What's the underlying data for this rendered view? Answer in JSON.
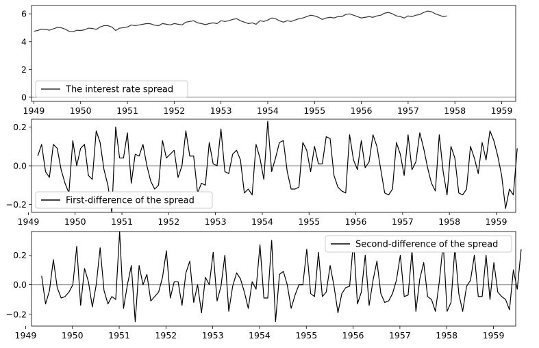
{
  "chart_data": [
    {
      "type": "line",
      "title": "",
      "xlabel": "",
      "ylabel": "",
      "xlim": [
        1948.95,
        1959.3
      ],
      "ylim": [
        -0.3,
        6.6
      ],
      "x_ticks": [
        1949,
        1950,
        1951,
        1952,
        1953,
        1954,
        1955,
        1956,
        1957,
        1958,
        1959
      ],
      "y_ticks": [
        0,
        2,
        4,
        6
      ],
      "legend": "lower-left",
      "zero_line": true,
      "series": [
        {
          "name": "The interest rate spread",
          "color": "#333333",
          "x_start": 1949.0,
          "x_step": 0.08333,
          "values": [
            4.75,
            4.8,
            4.9,
            4.88,
            4.82,
            4.92,
            5.02,
            5.0,
            4.9,
            4.75,
            4.7,
            4.82,
            4.8,
            4.85,
            4.97,
            4.95,
            4.88,
            5.05,
            5.15,
            5.15,
            5.05,
            4.8,
            4.97,
            5.0,
            5.05,
            5.2,
            5.15,
            5.2,
            5.25,
            5.3,
            5.28,
            5.18,
            5.15,
            5.3,
            5.25,
            5.2,
            5.3,
            5.25,
            5.2,
            5.4,
            5.45,
            5.5,
            5.35,
            5.3,
            5.22,
            5.3,
            5.35,
            5.3,
            5.5,
            5.45,
            5.5,
            5.6,
            5.65,
            5.5,
            5.4,
            5.3,
            5.35,
            5.25,
            5.5,
            5.45,
            5.55,
            5.7,
            5.65,
            5.5,
            5.4,
            5.5,
            5.45,
            5.55,
            5.65,
            5.7,
            5.8,
            5.9,
            5.85,
            5.75,
            5.6,
            5.7,
            5.75,
            5.7,
            5.8,
            5.8,
            5.95,
            6.0,
            5.9,
            5.8,
            5.7,
            5.75,
            5.8,
            5.75,
            5.85,
            5.9,
            6.05,
            6.1,
            6.0,
            5.85,
            5.8,
            5.7,
            5.85,
            5.8,
            5.9,
            5.95,
            6.1,
            6.2,
            6.15,
            6.0,
            5.9,
            5.8,
            5.85
          ]
        }
      ]
    },
    {
      "type": "line",
      "title": "",
      "xlabel": "",
      "ylabel": "",
      "xlim": [
        1948.95,
        1959.3
      ],
      "ylim": [
        -0.24,
        0.24
      ],
      "x_ticks": [
        1949,
        1950,
        1951,
        1952,
        1953,
        1954,
        1955,
        1956,
        1957,
        1958,
        1959
      ],
      "y_ticks": [
        -0.2,
        0.0,
        0.2
      ],
      "legend": "lower-left",
      "zero_line": true,
      "series": [
        {
          "name": "First-difference of the spread",
          "color": "#000000",
          "x_start": 1949.083,
          "x_step": 0.08333,
          "values": [
            0.05,
            0.11,
            -0.03,
            -0.06,
            0.11,
            0.09,
            -0.02,
            -0.09,
            -0.14,
            0.13,
            0.0,
            0.09,
            0.11,
            -0.05,
            -0.07,
            0.18,
            0.12,
            -0.02,
            -0.1,
            -0.24,
            0.2,
            0.04,
            0.04,
            0.17,
            -0.09,
            0.06,
            0.05,
            0.11,
            0.0,
            -0.08,
            -0.12,
            -0.1,
            0.13,
            0.04,
            0.06,
            0.08,
            -0.06,
            0.0,
            0.18,
            0.05,
            0.05,
            -0.14,
            -0.09,
            -0.1,
            0.12,
            0.01,
            0.0,
            0.19,
            -0.03,
            -0.04,
            0.06,
            0.08,
            0.03,
            -0.14,
            -0.12,
            -0.15,
            0.11,
            0.04,
            -0.07,
            0.23,
            -0.03,
            0.04,
            0.12,
            0.13,
            -0.03,
            -0.12,
            -0.12,
            -0.11,
            0.12,
            0.08,
            -0.03,
            0.1,
            0.01,
            0.01,
            0.15,
            0.14,
            -0.05,
            -0.11,
            -0.13,
            -0.14,
            0.16,
            0.03,
            -0.02,
            0.13,
            -0.01,
            0.02,
            0.16,
            0.1,
            -0.02,
            -0.14,
            -0.15,
            -0.12,
            0.12,
            0.06,
            -0.05,
            0.16,
            -0.02,
            0.02,
            0.17,
            0.09,
            -0.01,
            -0.09,
            -0.13,
            0.16,
            -0.03,
            -0.15,
            0.1,
            0.04,
            -0.14,
            -0.15,
            -0.12,
            0.1,
            0.04,
            -0.04,
            0.12,
            0.03,
            0.18,
            0.13,
            0.05,
            -0.05,
            -0.22,
            -0.12,
            -0.15,
            0.09
          ]
        }
      ]
    },
    {
      "type": "line",
      "title": "",
      "xlabel": "",
      "ylabel": "",
      "xlim": [
        1948.95,
        1959.3
      ],
      "ylim": [
        -0.28,
        0.36
      ],
      "x_ticks": [
        1949,
        1950,
        1951,
        1952,
        1953,
        1954,
        1955,
        1956,
        1957,
        1958,
        1959
      ],
      "y_ticks": [
        -0.2,
        0.0,
        0.2
      ],
      "legend": "upper-right",
      "zero_line": true,
      "series": [
        {
          "name": "Second-difference of the spread",
          "color": "#000000",
          "x_start": 1949.167,
          "x_step": 0.08333,
          "values": [
            0.06,
            -0.13,
            -0.04,
            0.17,
            -0.02,
            -0.09,
            -0.08,
            -0.05,
            0.0,
            0.26,
            -0.14,
            0.11,
            0.02,
            -0.15,
            0.0,
            0.25,
            -0.04,
            -0.13,
            -0.08,
            -0.1,
            0.36,
            -0.16,
            0.0,
            0.13,
            -0.25,
            0.13,
            0.0,
            0.07,
            -0.11,
            -0.08,
            -0.05,
            0.05,
            0.23,
            -0.09,
            0.02,
            0.02,
            -0.14,
            0.08,
            0.16,
            -0.12,
            0.0,
            -0.19,
            0.05,
            0.0,
            0.22,
            -0.11,
            -0.01,
            0.2,
            -0.18,
            -0.01,
            0.08,
            0.04,
            -0.05,
            -0.16,
            0.02,
            -0.03,
            0.27,
            -0.09,
            -0.09,
            0.3,
            -0.25,
            0.07,
            0.09,
            0.0,
            -0.16,
            -0.07,
            0.0,
            0.0,
            0.24,
            -0.06,
            -0.08,
            0.22,
            -0.08,
            -0.05,
            0.13,
            -0.01,
            -0.19,
            -0.06,
            -0.02,
            -0.01,
            0.3,
            -0.13,
            -0.05,
            0.2,
            -0.14,
            0.03,
            0.16,
            -0.06,
            -0.12,
            -0.11,
            -0.06,
            0.03,
            0.2,
            -0.08,
            -0.07,
            0.23,
            -0.18,
            0.04,
            0.15,
            -0.08,
            -0.1,
            -0.18,
            0.02,
            0.28,
            -0.18,
            -0.12,
            0.25,
            -0.06,
            -0.18,
            -0.01,
            0.03,
            0.2,
            -0.08,
            -0.08,
            0.2,
            -0.1,
            0.15,
            -0.05,
            -0.08,
            -0.1,
            -0.17,
            0.1,
            -0.03,
            0.24
          ]
        }
      ]
    }
  ]
}
